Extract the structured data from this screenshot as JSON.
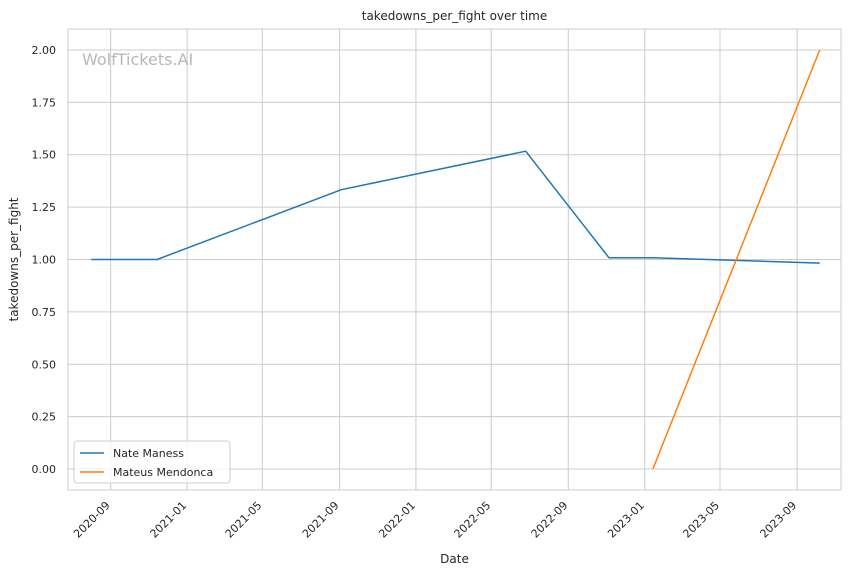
{
  "watermark": "WolfTickets.AI",
  "chart_data": {
    "type": "line",
    "title": "takedowns_per_fight over time",
    "xlabel": "Date",
    "ylabel": "takedowns_per_fight",
    "x_ticks": [
      "2020-09",
      "2021-01",
      "2021-05",
      "2021-09",
      "2022-01",
      "2022-05",
      "2022-09",
      "2023-01",
      "2023-05",
      "2023-09"
    ],
    "y_ticks": [
      0.0,
      0.25,
      0.5,
      0.75,
      1.0,
      1.25,
      1.5,
      1.75,
      2.0
    ],
    "y_tick_labels": [
      "0.00",
      "0.25",
      "0.50",
      "0.75",
      "1.00",
      "1.25",
      "1.50",
      "1.75",
      "2.00"
    ],
    "xlim": [
      "2020-06-25",
      "2023-11-10"
    ],
    "ylim": [
      -0.1,
      2.1
    ],
    "grid": true,
    "legend_position": "lower-left",
    "series": [
      {
        "name": "Nate Maness",
        "color": "#1f77b4",
        "x": [
          "2020-08-01",
          "2020-11-14",
          "2021-09-04",
          "2022-06-25",
          "2022-11-05",
          "2023-01-14",
          "2023-10-07"
        ],
        "y": [
          1.0,
          1.0,
          1.333,
          1.517,
          1.008,
          1.008,
          0.983
        ]
      },
      {
        "name": "Mateus Mendonca",
        "color": "#ff7f0e",
        "x": [
          "2023-01-14",
          "2023-10-07"
        ],
        "y": [
          0.0,
          2.0
        ]
      }
    ]
  }
}
